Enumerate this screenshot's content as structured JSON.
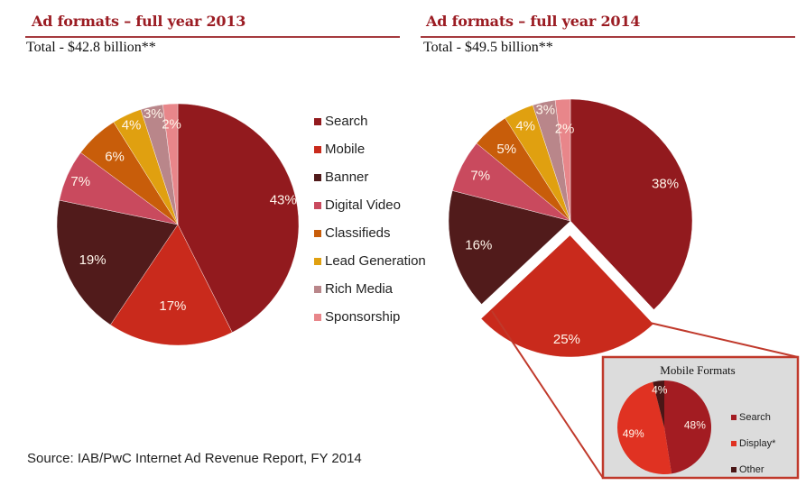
{
  "source": "Source: IAB/PwC Internet Ad Revenue Report, FY 2014",
  "panels": [
    {
      "title": "Ad formats – full year 2013",
      "total": "Total - $42.8 billion**"
    },
    {
      "title": "Ad formats – full year 2014",
      "total": "Total - $49.5 billion**"
    }
  ],
  "legend": [
    {
      "label": "Search",
      "color": "#921a1e"
    },
    {
      "label": "Mobile",
      "color": "#c92a1c"
    },
    {
      "label": "Banner",
      "color": "#511b1b"
    },
    {
      "label": "Digital Video",
      "color": "#c94a5e"
    },
    {
      "label": "Classifieds",
      "color": "#c85d0a"
    },
    {
      "label": "Lead Generation",
      "color": "#e0a010"
    },
    {
      "label": "Rich Media",
      "color": "#b9868a"
    },
    {
      "label": "Sponsorship",
      "color": "#e8868a"
    }
  ],
  "inset": {
    "title": "Mobile Formats",
    "legend": [
      {
        "label": "Search",
        "color": "#a31c22"
      },
      {
        "label": "Display*",
        "color": "#e03222"
      },
      {
        "label": "Other",
        "color": "#4a1616"
      }
    ]
  },
  "chart_data": [
    {
      "type": "pie",
      "title": "Ad formats – full year 2013",
      "subtitle": "Total - $42.8 billion**",
      "categories": [
        "Search",
        "Mobile",
        "Banner",
        "Digital Video",
        "Classifieds",
        "Lead Generation",
        "Rich Media",
        "Sponsorship"
      ],
      "values": [
        43,
        17,
        19,
        7,
        6,
        4,
        3,
        2
      ],
      "labels": [
        "43%",
        "17%",
        "19%",
        "7%",
        "6%",
        "4%",
        "3%",
        "2%"
      ],
      "legend": "right"
    },
    {
      "type": "pie",
      "title": "Ad formats – full year 2014",
      "subtitle": "Total - $49.5 billion**",
      "categories": [
        "Search",
        "Mobile",
        "Banner",
        "Digital Video",
        "Classifieds",
        "Lead Generation",
        "Rich Media",
        "Sponsorship"
      ],
      "values": [
        38,
        25,
        16,
        7,
        5,
        4,
        3,
        2
      ],
      "labels": [
        "38%",
        "25%",
        "16%",
        "7%",
        "5%",
        "4%",
        "3%",
        "2%"
      ],
      "exploded": "Mobile"
    },
    {
      "type": "pie",
      "title": "Mobile Formats",
      "categories": [
        "Search",
        "Display*",
        "Other"
      ],
      "values": [
        48,
        49,
        4
      ],
      "labels": [
        "48%",
        "49%",
        "4%"
      ],
      "legend": "right"
    }
  ]
}
